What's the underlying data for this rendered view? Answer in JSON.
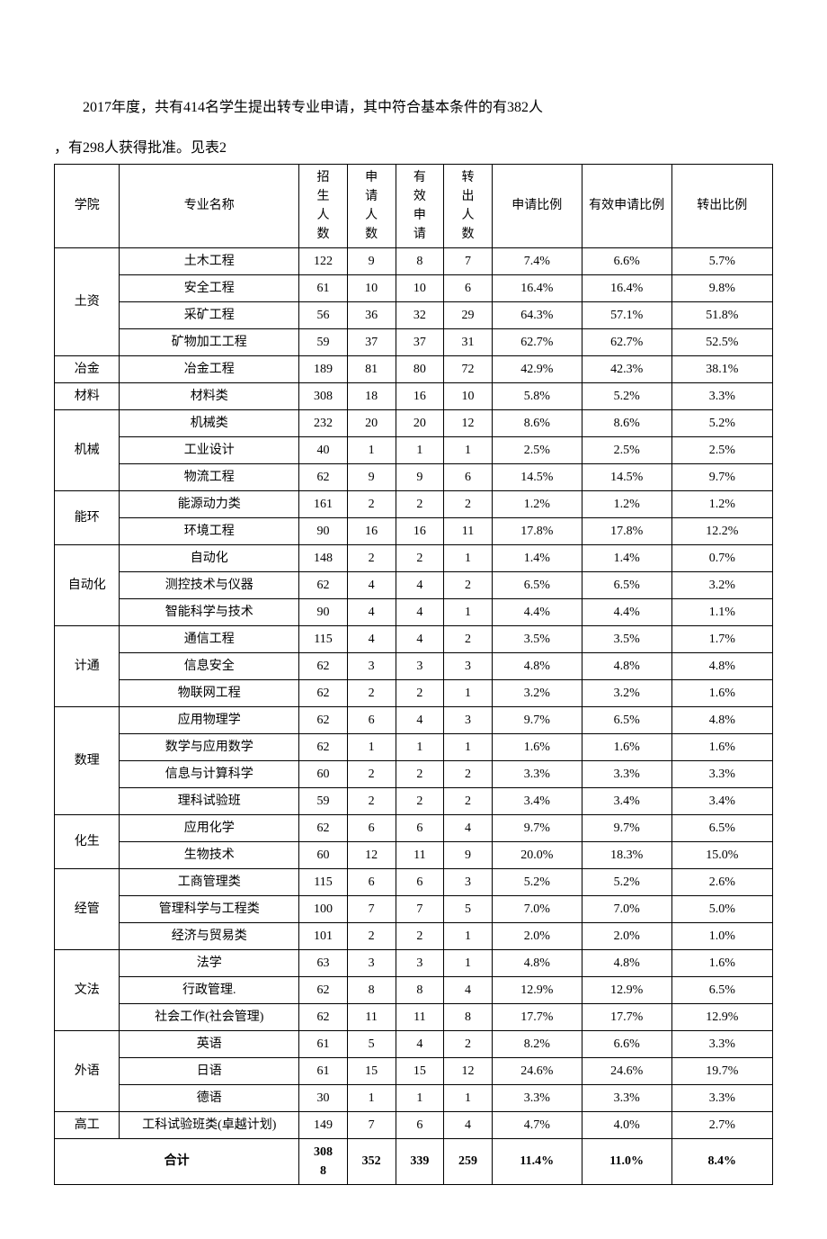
{
  "intro_line1": "2017年度，共有414名学生提出转专业申请，其中符合基本条件的有382人",
  "intro_line2": "，有298人获得批准。见表2",
  "headers": {
    "dept": "学院",
    "major": "专业名称",
    "enroll": "招生人数",
    "apply": "申请人数",
    "valid": "有效申请",
    "out": "转出人数",
    "apply_pct": "申请比例",
    "valid_pct": "有效申请比例",
    "out_pct": "转出比例"
  },
  "groups": [
    {
      "dept": "土资",
      "rows": [
        [
          "土木工程",
          "122",
          "9",
          "8",
          "7",
          "7.4%",
          "6.6%",
          "5.7%"
        ],
        [
          "安全工程",
          "61",
          "10",
          "10",
          "6",
          "16.4%",
          "16.4%",
          "9.8%"
        ],
        [
          "采矿工程",
          "56",
          "36",
          "32",
          "29",
          "64.3%",
          "57.1%",
          "51.8%"
        ],
        [
          "矿物加工工程",
          "59",
          "37",
          "37",
          "31",
          "62.7%",
          "62.7%",
          "52.5%"
        ]
      ]
    },
    {
      "dept": "冶金",
      "rows": [
        [
          "冶金工程",
          "189",
          "81",
          "80",
          "72",
          "42.9%",
          "42.3%",
          "38.1%"
        ]
      ]
    },
    {
      "dept": "材料",
      "rows": [
        [
          "材料类",
          "308",
          "18",
          "16",
          "10",
          "5.8%",
          "5.2%",
          "3.3%"
        ]
      ]
    },
    {
      "dept": "机械",
      "rows": [
        [
          "机械类",
          "232",
          "20",
          "20",
          "12",
          "8.6%",
          "8.6%",
          "5.2%"
        ],
        [
          "工业设计",
          "40",
          "1",
          "1",
          "1",
          "2.5%",
          "2.5%",
          "2.5%"
        ],
        [
          "物流工程",
          "62",
          "9",
          "9",
          "6",
          "14.5%",
          "14.5%",
          "9.7%"
        ]
      ]
    },
    {
      "dept": "能环",
      "rows": [
        [
          "能源动力类",
          "161",
          "2",
          "2",
          "2",
          "1.2%",
          "1.2%",
          "1.2%"
        ],
        [
          "环境工程",
          "90",
          "16",
          "16",
          "11",
          "17.8%",
          "17.8%",
          "12.2%"
        ]
      ]
    },
    {
      "dept": "自动化",
      "rows": [
        [
          "自动化",
          "148",
          "2",
          "2",
          "1",
          "1.4%",
          "1.4%",
          "0.7%"
        ],
        [
          "测控技术与仪器",
          "62",
          "4",
          "4",
          "2",
          "6.5%",
          "6.5%",
          "3.2%"
        ],
        [
          "智能科学与技术",
          "90",
          "4",
          "4",
          "1",
          "4.4%",
          "4.4%",
          "1.1%"
        ]
      ]
    },
    {
      "dept": "计通",
      "rows": [
        [
          "通信工程",
          "115",
          "4",
          "4",
          "2",
          "3.5%",
          "3.5%",
          "1.7%"
        ],
        [
          "信息安全",
          "62",
          "3",
          "3",
          "3",
          "4.8%",
          "4.8%",
          "4.8%"
        ],
        [
          "物联网工程",
          "62",
          "2",
          "2",
          "1",
          "3.2%",
          "3.2%",
          "1.6%"
        ]
      ]
    },
    {
      "dept": "数理",
      "rows": [
        [
          "应用物理学",
          "62",
          "6",
          "4",
          "3",
          "9.7%",
          "6.5%",
          "4.8%"
        ],
        [
          "数学与应用数学",
          "62",
          "1",
          "1",
          "1",
          "1.6%",
          "1.6%",
          "1.6%"
        ],
        [
          "信息与计算科学",
          "60",
          "2",
          "2",
          "2",
          "3.3%",
          "3.3%",
          "3.3%"
        ],
        [
          "理科试验班",
          "59",
          "2",
          "2",
          "2",
          "3.4%",
          "3.4%",
          "3.4%"
        ]
      ]
    },
    {
      "dept": "化生",
      "rows": [
        [
          "应用化学",
          "62",
          "6",
          "6",
          "4",
          "9.7%",
          "9.7%",
          "6.5%"
        ],
        [
          "生物技术",
          "60",
          "12",
          "11",
          "9",
          "20.0%",
          "18.3%",
          "15.0%"
        ]
      ]
    },
    {
      "dept": "经管",
      "rows": [
        [
          "工商管理类",
          "115",
          "6",
          "6",
          "3",
          "5.2%",
          "5.2%",
          "2.6%"
        ],
        [
          "管理科学与工程类",
          "100",
          "7",
          "7",
          "5",
          "7.0%",
          "7.0%",
          "5.0%"
        ],
        [
          "经济与贸易类",
          "101",
          "2",
          "2",
          "1",
          "2.0%",
          "2.0%",
          "1.0%"
        ]
      ]
    },
    {
      "dept": "文法",
      "rows": [
        [
          "法学",
          "63",
          "3",
          "3",
          "1",
          "4.8%",
          "4.8%",
          "1.6%"
        ],
        [
          "行政管理.",
          "62",
          "8",
          "8",
          "4",
          "12.9%",
          "12.9%",
          "6.5%"
        ],
        [
          "社会工作(社会管理)",
          "62",
          "11",
          "11",
          "8",
          "17.7%",
          "17.7%",
          "12.9%"
        ]
      ]
    },
    {
      "dept": "外语",
      "rows": [
        [
          "英语",
          "61",
          "5",
          "4",
          "2",
          "8.2%",
          "6.6%",
          "3.3%"
        ],
        [
          "日语",
          "61",
          "15",
          "15",
          "12",
          "24.6%",
          "24.6%",
          "19.7%"
        ],
        [
          "德语",
          "30",
          "1",
          "1",
          "1",
          "3.3%",
          "3.3%",
          "3.3%"
        ]
      ]
    },
    {
      "dept": "高工",
      "rows": [
        [
          "工科试验班类(卓越计划)",
          "149",
          "7",
          "6",
          "4",
          "4.7%",
          "4.0%",
          "2.7%"
        ]
      ]
    }
  ],
  "total": {
    "label": "合计",
    "cells": [
      "3088",
      "352",
      "339",
      "259",
      "11.4%",
      "11.0%",
      "8.4%"
    ]
  }
}
